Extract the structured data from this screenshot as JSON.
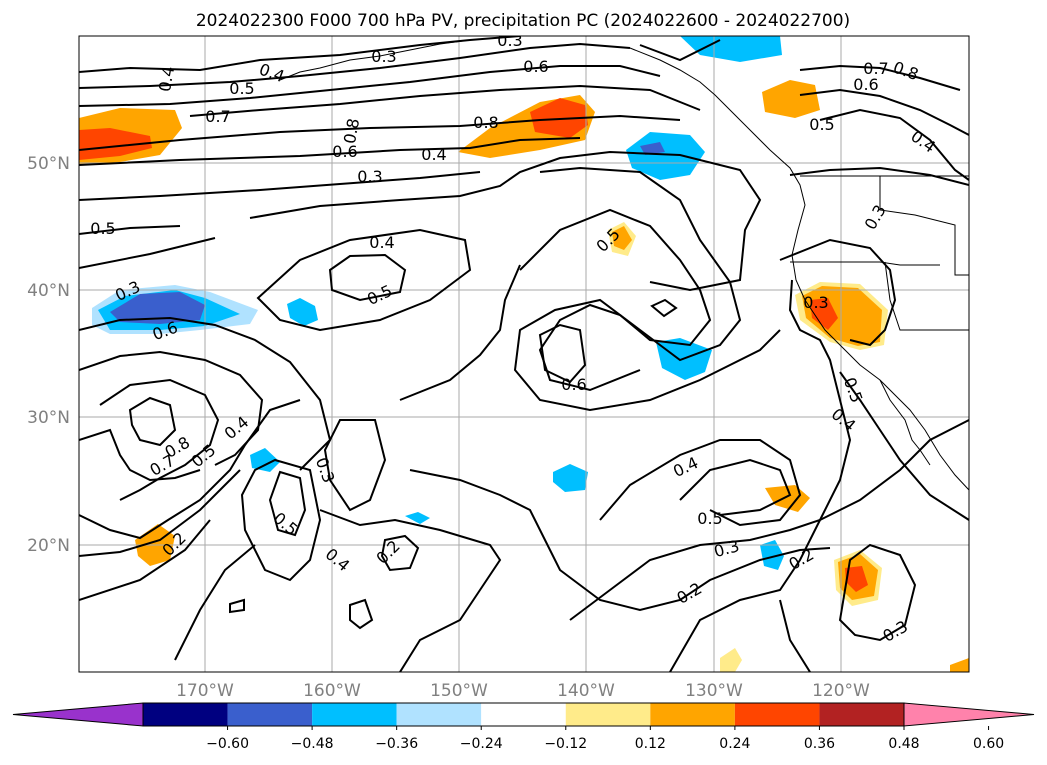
{
  "title": "2024022300 F000 700 hPa PV, precipitation PC (2024022600 - 2024022700)",
  "map": {
    "lat_labels": [
      "50°N",
      "40°N",
      "30°N",
      "20°N"
    ],
    "lon_labels": [
      "170°W",
      "160°W",
      "150°W",
      "140°W",
      "130°W",
      "120°W"
    ],
    "gridline_color": "#aaaaaa"
  },
  "contour_labels": [
    "0.4",
    "0.5",
    "0.4",
    "0.3",
    "0.3",
    "0.6",
    "0.7",
    "0.8",
    "0.6",
    "0.4",
    "0.3",
    "0.8",
    "0.5",
    "0.7",
    "0.8",
    "0.6",
    "0.4",
    "0.5",
    "0.3",
    "0.4",
    "0.5",
    "0.5",
    "0.3",
    "0.6",
    "0.6",
    "0.8",
    "0.7",
    "0.5",
    "0.4",
    "0.3",
    "0.5",
    "0.4",
    "0.2",
    "0.2",
    "0.4",
    "0.5",
    "0.3",
    "0.2",
    "0.2",
    "0.3",
    "0.3",
    "0.5",
    "0.4"
  ],
  "colorbar": {
    "ticks": [
      "−0.60",
      "−0.48",
      "−0.36",
      "−0.24",
      "−0.12",
      "0.12",
      "0.24",
      "0.36",
      "0.48",
      "0.60"
    ],
    "colors": [
      "#9932cc",
      "#000080",
      "#3a5fcd",
      "#00bfff",
      "#b0e2ff",
      "#ffffff",
      "#ffeb8a",
      "#ffa500",
      "#ff4500",
      "#b22222",
      "#ff82ab"
    ]
  }
}
